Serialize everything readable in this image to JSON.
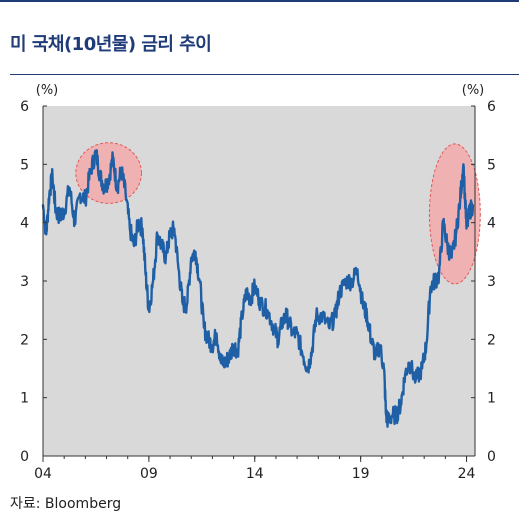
{
  "title": "미 국채(10년물) 금리 추이",
  "source": "자료: Bloomberg",
  "colors": {
    "line": "#1f5fa6",
    "plot_bg": "#d9d9d9",
    "highlight": "#f4a6a6",
    "highlight_stroke": "#e05a5a",
    "title": "#1f3b78"
  },
  "chart_data": {
    "type": "line",
    "title": "미 국채(10년물) 금리 추이",
    "xlabel": "",
    "ylabel_left": "(%)",
    "ylabel_right": "(%)",
    "xlim": [
      2004.0,
      2024.4
    ],
    "ylim": [
      0,
      6
    ],
    "x_ticks": [
      {
        "value": 2004,
        "label": "04"
      },
      {
        "value": 2009,
        "label": "09"
      },
      {
        "value": 2014,
        "label": "14"
      },
      {
        "value": 2019,
        "label": "19"
      },
      {
        "value": 2024,
        "label": "24"
      }
    ],
    "y_ticks": [
      0,
      1,
      2,
      3,
      4,
      5,
      6
    ],
    "grid": false,
    "highlights": [
      {
        "x_center": 2007.1,
        "y_center": 4.85,
        "x_radius": 1.55,
        "y_radius": 0.52
      },
      {
        "x_center": 2023.45,
        "y_center": 4.15,
        "x_radius": 1.2,
        "y_radius": 1.2
      }
    ],
    "series": [
      {
        "x": [
          2004.0,
          2004.15,
          2004.3,
          2004.45,
          2004.6,
          2004.8,
          2005.0,
          2005.25,
          2005.5,
          2005.75,
          2006.0,
          2006.25,
          2006.5,
          2006.7,
          2006.9,
          2007.1,
          2007.3,
          2007.5,
          2007.7,
          2007.9,
          2008.1,
          2008.3,
          2008.5,
          2008.7,
          2008.85,
          2009.0,
          2009.2,
          2009.4,
          2009.6,
          2009.8,
          2010.0,
          2010.2,
          2010.4,
          2010.6,
          2010.8,
          2011.0,
          2011.2,
          2011.4,
          2011.6,
          2011.8,
          2012.0,
          2012.2,
          2012.4,
          2012.6,
          2012.8,
          2013.0,
          2013.2,
          2013.4,
          2013.6,
          2013.8,
          2014.0,
          2014.3,
          2014.6,
          2014.9,
          2015.1,
          2015.3,
          2015.5,
          2015.8,
          2016.0,
          2016.3,
          2016.5,
          2016.7,
          2016.9,
          2017.2,
          2017.5,
          2017.8,
          2018.0,
          2018.3,
          2018.6,
          2018.85,
          2019.1,
          2019.3,
          2019.5,
          2019.7,
          2019.9,
          2020.1,
          2020.2,
          2020.3,
          2020.5,
          2020.7,
          2020.9,
          2021.1,
          2021.3,
          2021.6,
          2021.9,
          2022.1,
          2022.3,
          2022.5,
          2022.7,
          2022.9,
          2023.1,
          2023.3,
          2023.5,
          2023.7,
          2023.85,
          2024.0,
          2024.15,
          2024.3
        ],
        "values": [
          4.3,
          3.8,
          4.5,
          4.8,
          4.2,
          4.1,
          4.2,
          4.6,
          4.0,
          4.5,
          4.4,
          4.9,
          5.2,
          4.8,
          4.6,
          4.75,
          5.1,
          4.6,
          4.9,
          4.5,
          3.9,
          3.6,
          4.0,
          3.9,
          3.1,
          2.5,
          3.0,
          3.8,
          3.6,
          3.4,
          3.8,
          3.9,
          3.2,
          2.6,
          2.6,
          3.4,
          3.5,
          3.0,
          2.2,
          2.0,
          1.9,
          2.1,
          1.6,
          1.6,
          1.7,
          1.9,
          1.8,
          2.4,
          2.8,
          2.7,
          2.9,
          2.6,
          2.5,
          2.2,
          2.0,
          2.3,
          2.4,
          2.1,
          2.1,
          1.7,
          1.5,
          1.8,
          2.4,
          2.4,
          2.2,
          2.4,
          2.8,
          3.0,
          3.0,
          3.2,
          2.6,
          2.4,
          2.0,
          1.7,
          1.9,
          1.5,
          0.7,
          0.6,
          0.7,
          0.7,
          0.9,
          1.4,
          1.6,
          1.3,
          1.5,
          1.9,
          2.9,
          3.0,
          3.1,
          4.0,
          3.6,
          3.4,
          3.8,
          4.4,
          5.0,
          3.9,
          4.2,
          4.3
        ]
      }
    ]
  }
}
